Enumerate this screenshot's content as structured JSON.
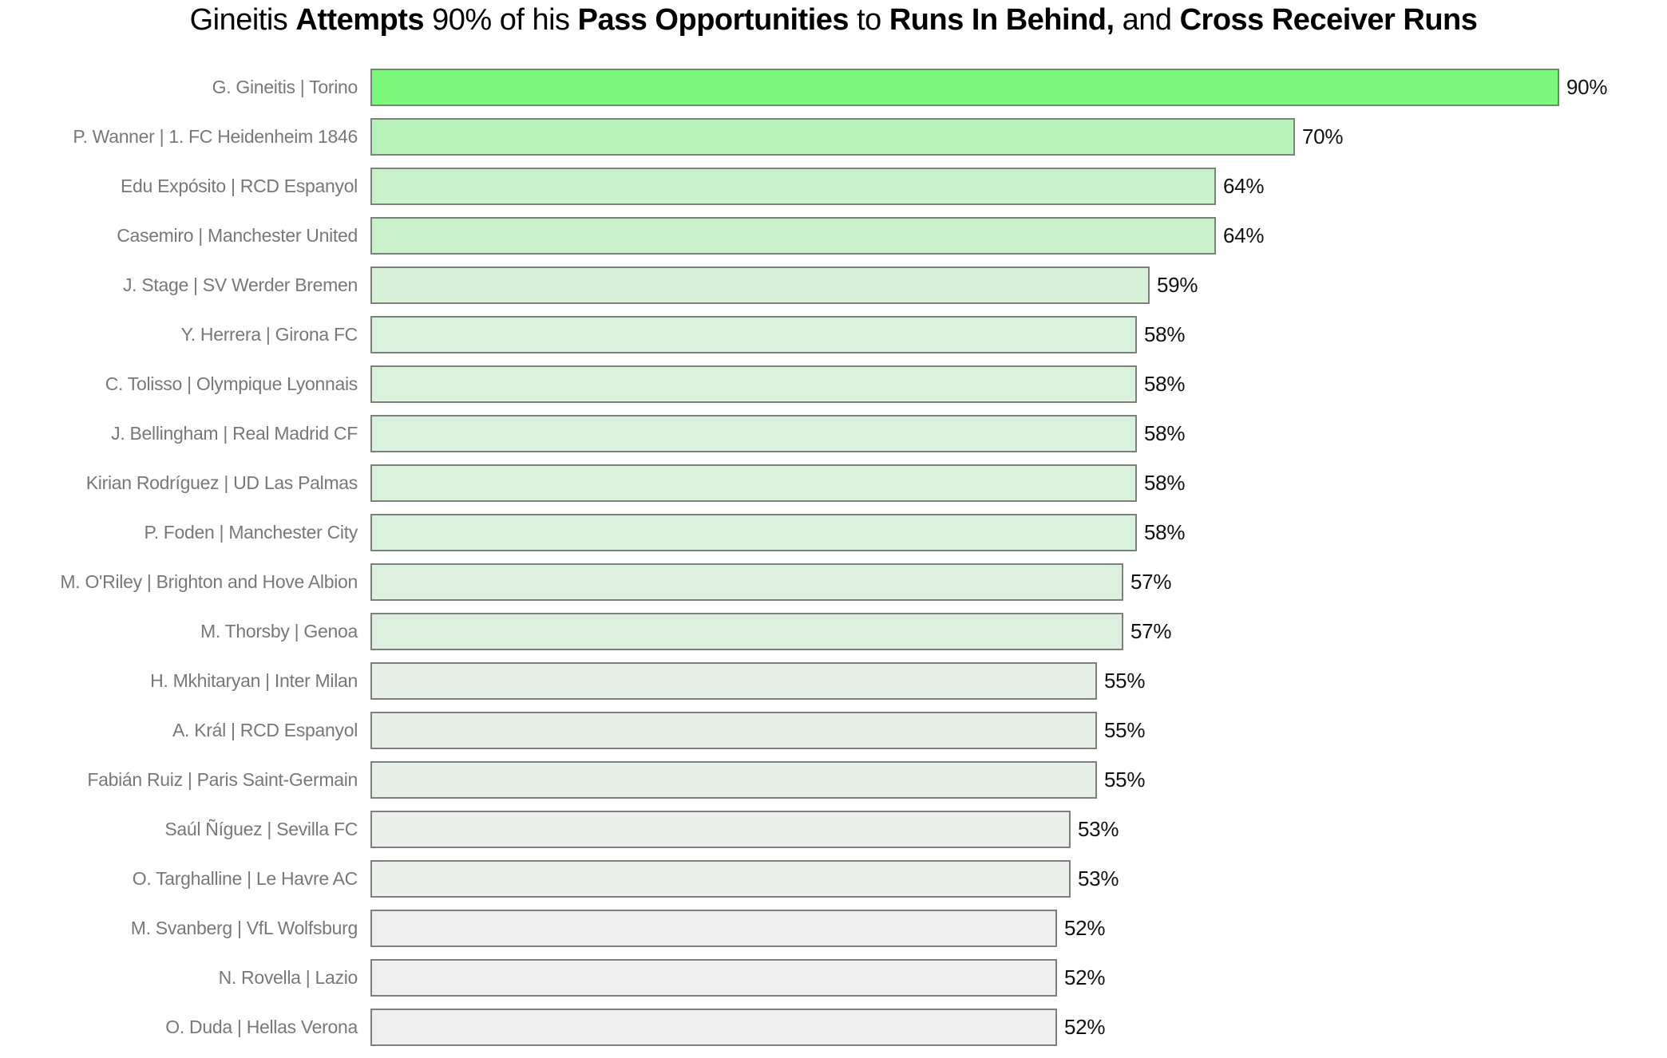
{
  "title": {
    "full_text": "Gineitis Attempts 90% of his Pass Opportunities to Runs In Behind, and Cross Receiver Runs",
    "segments": [
      {
        "text": "Gineitis ",
        "bold": false
      },
      {
        "text": "Attempts",
        "bold": true
      },
      {
        "text": " 90% of his ",
        "bold": false
      },
      {
        "text": "Pass Opportunities",
        "bold": true
      },
      {
        "text": " to ",
        "bold": false
      },
      {
        "text": "Runs In Behind,",
        "bold": true
      },
      {
        "text": " and ",
        "bold": false
      },
      {
        "text": "Cross Receiver Runs",
        "bold": true
      }
    ]
  },
  "chart_data": {
    "type": "bar",
    "orientation": "horizontal",
    "title": "Gineitis Attempts 90% of his Pass Opportunities to Runs In Behind, and Cross Receiver Runs",
    "categories": [
      "G. Gineitis | Torino",
      "P. Wanner | 1. FC Heidenheim 1846",
      "Edu Expósito | RCD Espanyol",
      "Casemiro | Manchester United",
      "J. Stage | SV Werder Bremen",
      "Y. Herrera | Girona FC",
      "C. Tolisso | Olympique Lyonnais",
      "J. Bellingham | Real Madrid CF",
      "Kirian Rodríguez | UD Las Palmas",
      "P. Foden | Manchester City",
      "M. O'Riley | Brighton and Hove Albion",
      "M. Thorsby | Genoa",
      "H. Mkhitaryan | Inter Milan",
      "A. Král | RCD Espanyol",
      "Fabián Ruiz | Paris Saint-Germain",
      "Saúl Ñíguez | Sevilla FC",
      "O. Targhalline | Le Havre AC",
      "M. Svanberg | VfL Wolfsburg",
      "N. Rovella | Lazio",
      "O. Duda | Hellas Verona"
    ],
    "values": [
      90,
      70,
      64,
      64,
      59,
      58,
      58,
      58,
      58,
      58,
      57,
      57,
      55,
      55,
      55,
      53,
      53,
      52,
      52,
      52
    ],
    "value_labels": [
      "90%",
      "70%",
      "64%",
      "64%",
      "59%",
      "58%",
      "58%",
      "58%",
      "58%",
      "58%",
      "57%",
      "57%",
      "55%",
      "55%",
      "55%",
      "53%",
      "53%",
      "52%",
      "52%",
      "52%"
    ],
    "bar_colors": [
      "#7df87d",
      "#b6f2b9",
      "#c9f2cb",
      "#c9f2cb",
      "#d8f1d9",
      "#daf1db",
      "#daf1db",
      "#daf1db",
      "#daf1db",
      "#daf1db",
      "#ddf0dd",
      "#ddf0dd",
      "#e6efe6",
      "#e6efe6",
      "#e6efe6",
      "#ebefe9",
      "#ebefe9",
      "#efefef",
      "#efefef",
      "#efefef"
    ],
    "xlim": [
      0,
      98
    ],
    "grid": false,
    "legend": "none",
    "colors": {
      "bar_border": "#7f7f7f",
      "category_label": "#787878",
      "value_label": "#111111",
      "title_text": "#000000",
      "background": "#ffffff"
    }
  }
}
